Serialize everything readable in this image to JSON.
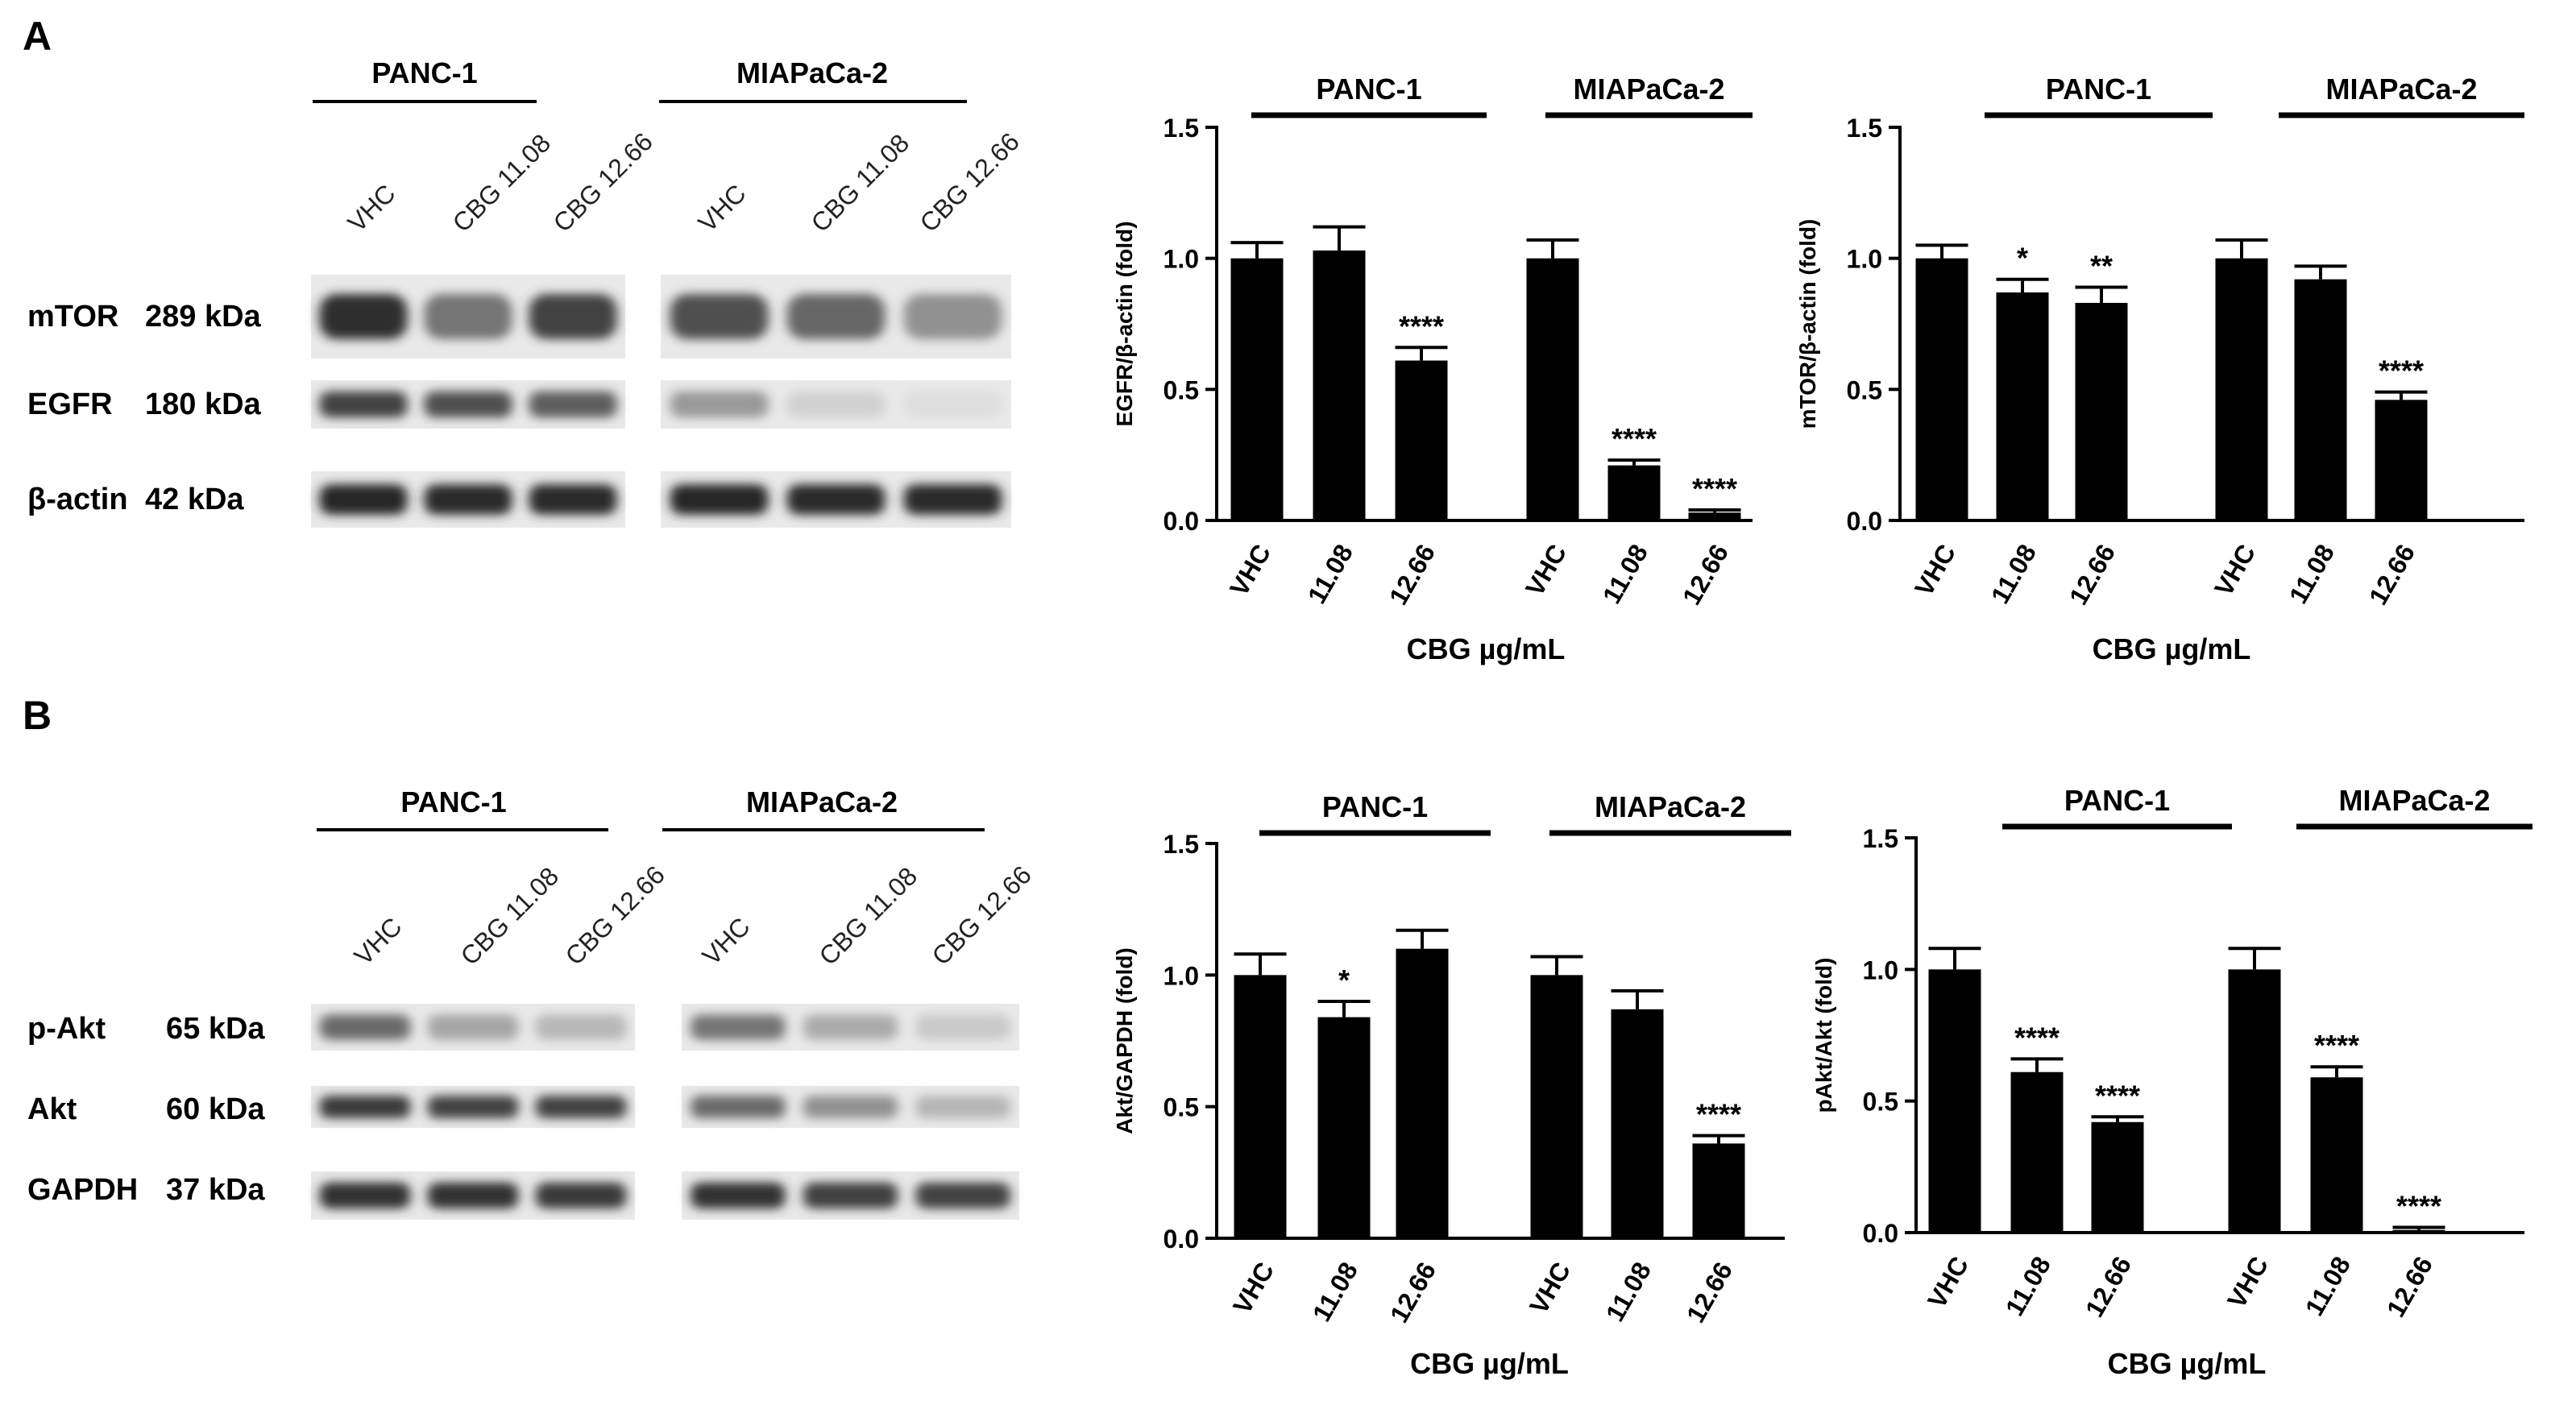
{
  "panels": [
    {
      "letter": "A",
      "blot": {
        "groups": [
          "PANC-1",
          "MIAPaCa-2"
        ],
        "lanes": [
          "VHC",
          "CBG 11.08",
          "CBG 12.66"
        ],
        "rows": [
          {
            "protein": "mTOR",
            "size": "289 kDa",
            "intensity": [
              [
                0.88,
                0.55,
                0.78
              ],
              [
                0.72,
                0.62,
                0.42
              ]
            ]
          },
          {
            "protein": "EGFR",
            "size": "180 kDa",
            "intensity": [
              [
                0.78,
                0.72,
                0.66
              ],
              [
                0.38,
                0.12,
                0.06
              ]
            ]
          },
          {
            "protein": "β-actin",
            "size": "42 kDa",
            "intensity": [
              [
                0.92,
                0.9,
                0.9
              ],
              [
                0.92,
                0.9,
                0.9
              ]
            ]
          }
        ]
      }
    },
    {
      "letter": "B",
      "blot": {
        "groups": [
          "PANC-1",
          "MIAPaCa-2"
        ],
        "lanes": [
          "VHC",
          "CBG 11.08",
          "CBG 12.66"
        ],
        "rows": [
          {
            "protein": "p-Akt",
            "size": "65 kDa",
            "intensity": [
              [
                0.6,
                0.32,
                0.24
              ],
              [
                0.55,
                0.3,
                0.16
              ]
            ]
          },
          {
            "protein": "Akt",
            "size": "60 kDa",
            "intensity": [
              [
                0.82,
                0.78,
                0.78
              ],
              [
                0.6,
                0.42,
                0.25
              ]
            ]
          },
          {
            "protein": "GAPDH",
            "size": "37 kDa",
            "intensity": [
              [
                0.86,
                0.86,
                0.82
              ],
              [
                0.86,
                0.8,
                0.78
              ]
            ]
          }
        ]
      }
    }
  ],
  "chart_data": [
    {
      "type": "bar",
      "ylabel": "EGFR/β-actin (fold)",
      "xlabel": "CBG µg/mL",
      "ylim": [
        0,
        1.5
      ],
      "yticks": [
        "0.0",
        "0.5",
        "1.0",
        "1.5"
      ],
      "groups": [
        "PANC-1",
        "MIAPaCa-2"
      ],
      "categories": [
        "VHC",
        "11.08",
        "12.66"
      ],
      "series": [
        {
          "group": "PANC-1",
          "values": [
            1.0,
            1.03,
            0.61
          ],
          "errors": [
            0.06,
            0.09,
            0.05
          ],
          "stars": [
            "",
            "",
            "****"
          ]
        },
        {
          "group": "MIAPaCa-2",
          "values": [
            1.0,
            0.21,
            0.03
          ],
          "errors": [
            0.07,
            0.02,
            0.01
          ],
          "stars": [
            "",
            "****",
            "****"
          ]
        }
      ]
    },
    {
      "type": "bar",
      "ylabel": "mTOR/β-actin (fold)",
      "xlabel": "CBG µg/mL",
      "ylim": [
        0,
        1.5
      ],
      "yticks": [
        "0.0",
        "0.5",
        "1.0",
        "1.5"
      ],
      "groups": [
        "PANC-1",
        "MIAPaCa-2"
      ],
      "categories": [
        "VHC",
        "11.08",
        "12.66"
      ],
      "series": [
        {
          "group": "PANC-1",
          "values": [
            1.0,
            0.87,
            0.83
          ],
          "errors": [
            0.05,
            0.05,
            0.06
          ],
          "stars": [
            "",
            "*",
            "**"
          ]
        },
        {
          "group": "MIAPaCa-2",
          "values": [
            1.0,
            0.92,
            0.46
          ],
          "errors": [
            0.07,
            0.05,
            0.03
          ],
          "stars": [
            "",
            "",
            "****"
          ]
        }
      ]
    },
    {
      "type": "bar",
      "ylabel": "Akt/GAPDH (fold)",
      "xlabel": "CBG µg/mL",
      "ylim": [
        0,
        1.5
      ],
      "yticks": [
        "0.0",
        "0.5",
        "1.0",
        "1.5"
      ],
      "groups": [
        "PANC-1",
        "MIAPaCa-2"
      ],
      "categories": [
        "VHC",
        "11.08",
        "12.66"
      ],
      "series": [
        {
          "group": "PANC-1",
          "values": [
            1.0,
            0.84,
            1.1
          ],
          "errors": [
            0.08,
            0.06,
            0.07
          ],
          "stars": [
            "",
            "*",
            ""
          ]
        },
        {
          "group": "MIAPaCa-2",
          "values": [
            1.0,
            0.87,
            0.36
          ],
          "errors": [
            0.07,
            0.07,
            0.03
          ],
          "stars": [
            "",
            "",
            "****"
          ]
        }
      ]
    },
    {
      "type": "bar",
      "ylabel": "pAkt/Akt (fold)",
      "xlabel": "CBG µg/mL",
      "ylim": [
        0,
        1.5
      ],
      "yticks": [
        "0.0",
        "0.5",
        "1.0",
        "1.5"
      ],
      "groups": [
        "PANC-1",
        "MIAPaCa-2"
      ],
      "categories": [
        "VHC",
        "11.08",
        "12.66"
      ],
      "series": [
        {
          "group": "PANC-1",
          "values": [
            1.0,
            0.61,
            0.42
          ],
          "errors": [
            0.08,
            0.05,
            0.02
          ],
          "stars": [
            "",
            "****",
            "****"
          ]
        },
        {
          "group": "MIAPaCa-2",
          "values": [
            1.0,
            0.59,
            0.01
          ],
          "errors": [
            0.08,
            0.04,
            0.01
          ],
          "stars": [
            "",
            "****",
            "****"
          ]
        }
      ]
    }
  ]
}
